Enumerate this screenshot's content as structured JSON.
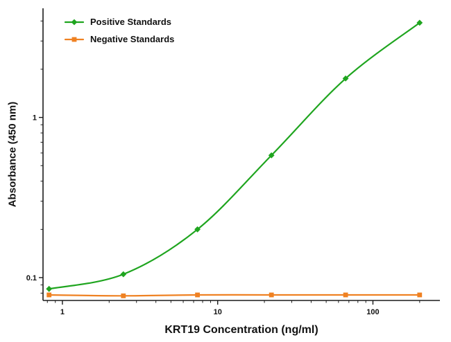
{
  "chart_data": {
    "type": "line",
    "xlabel": "KRT19 Concentration (ng/ml)",
    "ylabel": "Absorbance (450 nm)",
    "x_scale": "log",
    "y_scale": "log",
    "xlim": [
      0.75,
      270
    ],
    "ylim": [
      0.072,
      4.8
    ],
    "x_ticks": [
      1,
      10,
      100
    ],
    "y_ticks": [
      0.1,
      1
    ],
    "grid": false,
    "legend_position": "top-left",
    "axis_color": "#1a1a1a",
    "series": [
      {
        "name": "Positive Standards",
        "color": "#1fa51f",
        "marker": "diamond",
        "x": [
          0.82,
          2.47,
          7.41,
          22.2,
          66.7,
          200
        ],
        "y": [
          0.085,
          0.105,
          0.2,
          0.58,
          1.75,
          3.9
        ]
      },
      {
        "name": "Negative Standards",
        "color": "#ef8122",
        "marker": "square",
        "x": [
          0.82,
          2.47,
          7.41,
          22.2,
          66.7,
          200
        ],
        "y": [
          0.078,
          0.077,
          0.078,
          0.078,
          0.078,
          0.078
        ]
      }
    ]
  }
}
